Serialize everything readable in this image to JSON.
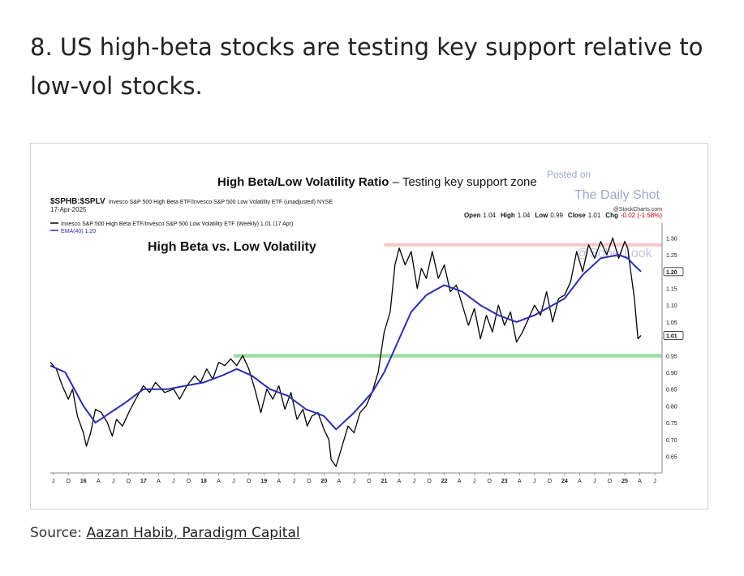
{
  "article": {
    "heading": "8. US high-beta stocks are testing key support relative to low-vol stocks.",
    "source_prefix": "Source: ",
    "source_link": "Aazan Habib, Paradigm Capital"
  },
  "chart_data": {
    "type": "line",
    "title": "High Beta/Low Volatility Ratio",
    "title_suffix": " – Testing key support zone",
    "subtitle": "High Beta vs. Low Volatility",
    "symbol": "$SPHB:$SPLV",
    "symbol_description": "Invesco S&P 500 High Beta ETF/Invesco S&P 500 Low Volatility ETF (unadjusted) NYSE",
    "date": "17-Apr-2025",
    "source_credit": "@StockCharts.com",
    "ohlc": {
      "open_label": "Open",
      "open": "1.04",
      "high_label": "High",
      "high": "1.04",
      "low_label": "Low",
      "low": "0.99",
      "close_label": "Close",
      "close": "1.01",
      "chg_label": "Chg",
      "chg": "-0.02 (-1.58%)"
    },
    "legend": [
      {
        "name": "Invesco S&P 500 High Beta ETF/Invesco S&P 500 Low Volatility ETF (Weekly) 1.01 (17 Apr)",
        "color": "#000000"
      },
      {
        "name": "EMA(40) 1.20",
        "color": "#2b2fa8"
      }
    ],
    "watermark": {
      "line1": "Posted on",
      "line2": "The Daily Shot",
      "line3": "@SoberLook"
    },
    "y_ticks": [
      "1.30",
      "1.25",
      "1.20",
      "1.15",
      "1.10",
      "1.05",
      "1.01",
      "0.95",
      "0.90",
      "0.85",
      "0.80",
      "0.75",
      "0.70",
      "0.65"
    ],
    "y_tick_values": [
      1.3,
      1.25,
      1.2,
      1.15,
      1.1,
      1.05,
      1.01,
      0.95,
      0.9,
      0.85,
      0.8,
      0.75,
      0.7,
      0.65
    ],
    "highlighted_ticks": [
      "1.20",
      "1.01"
    ],
    "ylim": [
      0.61,
      1.33
    ],
    "x_range": [
      2015.45,
      2025.62
    ],
    "x_labels": [
      {
        "t": 2015.5,
        "label": "J"
      },
      {
        "t": 2015.75,
        "label": "O"
      },
      {
        "t": 2016.0,
        "label": "16"
      },
      {
        "t": 2016.25,
        "label": "A"
      },
      {
        "t": 2016.5,
        "label": "J"
      },
      {
        "t": 2016.75,
        "label": "O"
      },
      {
        "t": 2017.0,
        "label": "17"
      },
      {
        "t": 2017.25,
        "label": "A"
      },
      {
        "t": 2017.5,
        "label": "J"
      },
      {
        "t": 2017.75,
        "label": "O"
      },
      {
        "t": 2018.0,
        "label": "18"
      },
      {
        "t": 2018.25,
        "label": "A"
      },
      {
        "t": 2018.5,
        "label": "J"
      },
      {
        "t": 2018.75,
        "label": "O"
      },
      {
        "t": 2019.0,
        "label": "19"
      },
      {
        "t": 2019.25,
        "label": "A"
      },
      {
        "t": 2019.5,
        "label": "J"
      },
      {
        "t": 2019.75,
        "label": "O"
      },
      {
        "t": 2020.0,
        "label": "20"
      },
      {
        "t": 2020.25,
        "label": "A"
      },
      {
        "t": 2020.5,
        "label": "J"
      },
      {
        "t": 2020.75,
        "label": "O"
      },
      {
        "t": 2021.0,
        "label": "21"
      },
      {
        "t": 2021.25,
        "label": "A"
      },
      {
        "t": 2021.5,
        "label": "J"
      },
      {
        "t": 2021.75,
        "label": "O"
      },
      {
        "t": 2022.0,
        "label": "22"
      },
      {
        "t": 2022.25,
        "label": "A"
      },
      {
        "t": 2022.5,
        "label": "J"
      },
      {
        "t": 2022.75,
        "label": "O"
      },
      {
        "t": 2023.0,
        "label": "23"
      },
      {
        "t": 2023.25,
        "label": "A"
      },
      {
        "t": 2023.5,
        "label": "J"
      },
      {
        "t": 2023.75,
        "label": "O"
      },
      {
        "t": 2024.0,
        "label": "24"
      },
      {
        "t": 2024.25,
        "label": "A"
      },
      {
        "t": 2024.5,
        "label": "J"
      },
      {
        "t": 2024.75,
        "label": "O"
      },
      {
        "t": 2025.0,
        "label": "25"
      },
      {
        "t": 2025.25,
        "label": "A"
      },
      {
        "t": 2025.5,
        "label": "J"
      }
    ],
    "support_zone": {
      "from": 0.944,
      "to": 0.955,
      "start": 2018.5,
      "color": "#7fd38a"
    },
    "resistance_zone": {
      "from": 1.275,
      "to": 1.285,
      "start": 2021.0,
      "color": "#f2b8b8"
    },
    "series": [
      {
        "name": "Invesco S&P 500 High Beta ETF/Invesco S&P 500 Low Volatility ETF (Weekly)",
        "color": "#000000",
        "points": [
          [
            2015.45,
            0.93
          ],
          [
            2015.55,
            0.91
          ],
          [
            2015.65,
            0.86
          ],
          [
            2015.75,
            0.82
          ],
          [
            2015.82,
            0.85
          ],
          [
            2015.9,
            0.77
          ],
          [
            2016.0,
            0.72
          ],
          [
            2016.05,
            0.68
          ],
          [
            2016.12,
            0.72
          ],
          [
            2016.2,
            0.79
          ],
          [
            2016.3,
            0.78
          ],
          [
            2016.4,
            0.75
          ],
          [
            2016.48,
            0.71
          ],
          [
            2016.55,
            0.76
          ],
          [
            2016.65,
            0.74
          ],
          [
            2016.78,
            0.79
          ],
          [
            2016.9,
            0.83
          ],
          [
            2017.0,
            0.86
          ],
          [
            2017.1,
            0.84
          ],
          [
            2017.2,
            0.87
          ],
          [
            2017.35,
            0.84
          ],
          [
            2017.5,
            0.85
          ],
          [
            2017.6,
            0.82
          ],
          [
            2017.72,
            0.86
          ],
          [
            2017.85,
            0.89
          ],
          [
            2017.95,
            0.87
          ],
          [
            2018.05,
            0.91
          ],
          [
            2018.15,
            0.88
          ],
          [
            2018.25,
            0.93
          ],
          [
            2018.35,
            0.92
          ],
          [
            2018.45,
            0.94
          ],
          [
            2018.55,
            0.92
          ],
          [
            2018.65,
            0.95
          ],
          [
            2018.75,
            0.91
          ],
          [
            2018.85,
            0.85
          ],
          [
            2018.95,
            0.78
          ],
          [
            2019.05,
            0.85
          ],
          [
            2019.15,
            0.82
          ],
          [
            2019.25,
            0.86
          ],
          [
            2019.35,
            0.79
          ],
          [
            2019.45,
            0.84
          ],
          [
            2019.55,
            0.76
          ],
          [
            2019.65,
            0.79
          ],
          [
            2019.72,
            0.74
          ],
          [
            2019.8,
            0.77
          ],
          [
            2019.9,
            0.78
          ],
          [
            2020.0,
            0.73
          ],
          [
            2020.08,
            0.7
          ],
          [
            2020.12,
            0.64
          ],
          [
            2020.2,
            0.62
          ],
          [
            2020.3,
            0.68
          ],
          [
            2020.4,
            0.74
          ],
          [
            2020.5,
            0.72
          ],
          [
            2020.6,
            0.78
          ],
          [
            2020.7,
            0.8
          ],
          [
            2020.8,
            0.84
          ],
          [
            2020.9,
            0.9
          ],
          [
            2021.0,
            1.02
          ],
          [
            2021.1,
            1.08
          ],
          [
            2021.18,
            1.22
          ],
          [
            2021.25,
            1.27
          ],
          [
            2021.35,
            1.22
          ],
          [
            2021.45,
            1.26
          ],
          [
            2021.55,
            1.15
          ],
          [
            2021.62,
            1.21
          ],
          [
            2021.7,
            1.18
          ],
          [
            2021.8,
            1.26
          ],
          [
            2021.9,
            1.18
          ],
          [
            2022.0,
            1.22
          ],
          [
            2022.1,
            1.14
          ],
          [
            2022.2,
            1.16
          ],
          [
            2022.3,
            1.1
          ],
          [
            2022.4,
            1.04
          ],
          [
            2022.5,
            1.09
          ],
          [
            2022.6,
            1.0
          ],
          [
            2022.7,
            1.07
          ],
          [
            2022.8,
            1.02
          ],
          [
            2022.9,
            1.1
          ],
          [
            2023.0,
            1.04
          ],
          [
            2023.1,
            1.08
          ],
          [
            2023.2,
            0.99
          ],
          [
            2023.3,
            1.02
          ],
          [
            2023.4,
            1.06
          ],
          [
            2023.5,
            1.1
          ],
          [
            2023.6,
            1.07
          ],
          [
            2023.7,
            1.14
          ],
          [
            2023.8,
            1.05
          ],
          [
            2023.9,
            1.12
          ],
          [
            2024.0,
            1.13
          ],
          [
            2024.1,
            1.17
          ],
          [
            2024.2,
            1.26
          ],
          [
            2024.3,
            1.2
          ],
          [
            2024.4,
            1.28
          ],
          [
            2024.5,
            1.24
          ],
          [
            2024.6,
            1.29
          ],
          [
            2024.7,
            1.25
          ],
          [
            2024.8,
            1.3
          ],
          [
            2024.9,
            1.24
          ],
          [
            2025.0,
            1.29
          ],
          [
            2025.05,
            1.27
          ],
          [
            2025.1,
            1.2
          ],
          [
            2025.16,
            1.12
          ],
          [
            2025.22,
            1.0
          ],
          [
            2025.27,
            1.01
          ]
        ]
      },
      {
        "name": "EMA(40)",
        "color": "#2b2fa8",
        "points": [
          [
            2015.45,
            0.92
          ],
          [
            2015.7,
            0.9
          ],
          [
            2016.0,
            0.8
          ],
          [
            2016.2,
            0.75
          ],
          [
            2016.45,
            0.78
          ],
          [
            2016.7,
            0.81
          ],
          [
            2017.0,
            0.85
          ],
          [
            2017.4,
            0.85
          ],
          [
            2017.7,
            0.86
          ],
          [
            2018.0,
            0.87
          ],
          [
            2018.3,
            0.89
          ],
          [
            2018.55,
            0.91
          ],
          [
            2018.8,
            0.89
          ],
          [
            2019.1,
            0.85
          ],
          [
            2019.4,
            0.83
          ],
          [
            2019.7,
            0.79
          ],
          [
            2020.0,
            0.77
          ],
          [
            2020.2,
            0.73
          ],
          [
            2020.5,
            0.78
          ],
          [
            2020.8,
            0.84
          ],
          [
            2021.0,
            0.9
          ],
          [
            2021.2,
            0.98
          ],
          [
            2021.45,
            1.08
          ],
          [
            2021.7,
            1.13
          ],
          [
            2022.0,
            1.16
          ],
          [
            2022.3,
            1.14
          ],
          [
            2022.6,
            1.1
          ],
          [
            2022.9,
            1.07
          ],
          [
            2023.2,
            1.05
          ],
          [
            2023.5,
            1.07
          ],
          [
            2023.8,
            1.1
          ],
          [
            2024.0,
            1.12
          ],
          [
            2024.3,
            1.19
          ],
          [
            2024.6,
            1.24
          ],
          [
            2024.9,
            1.25
          ],
          [
            2025.05,
            1.24
          ],
          [
            2025.15,
            1.22
          ],
          [
            2025.27,
            1.2
          ]
        ]
      }
    ]
  }
}
